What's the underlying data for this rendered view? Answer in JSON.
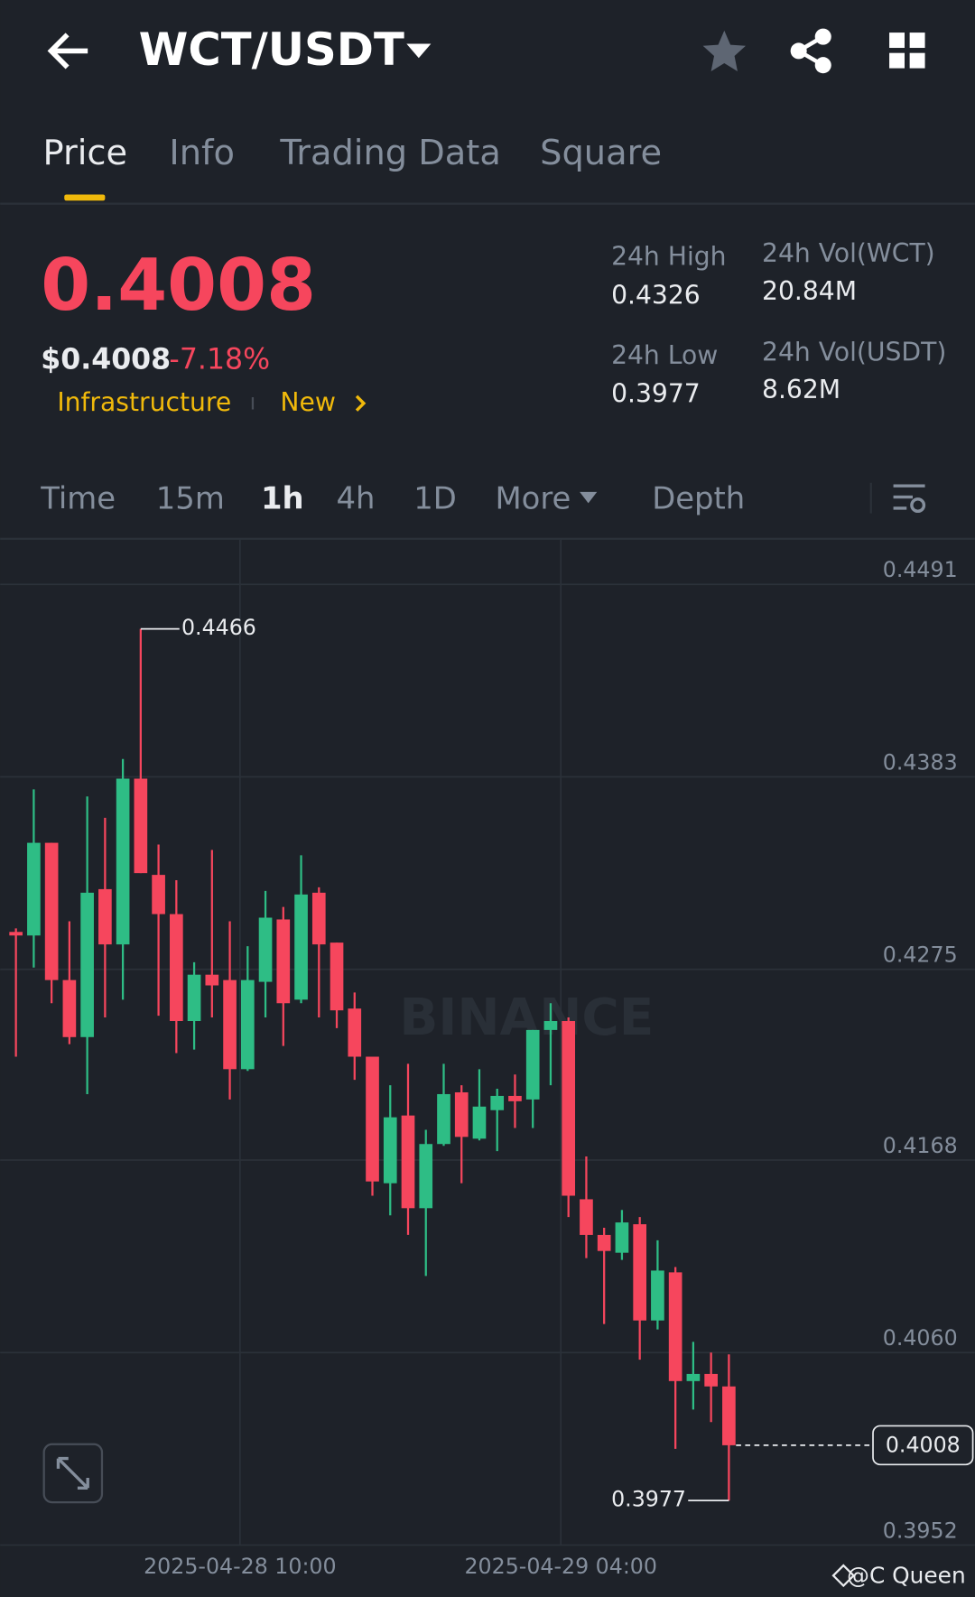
{
  "header": {
    "pair": "WCT/USDT"
  },
  "tabs": [
    "Price",
    "Info",
    "Trading Data",
    "Square"
  ],
  "ticker": {
    "last_price": "0.4008",
    "usd_price": "$0.4008",
    "change": "-7.18%",
    "tags": [
      "Infrastructure",
      "New"
    ],
    "stats": [
      {
        "label": "24h High",
        "value": "0.4326"
      },
      {
        "label": "24h Vol(WCT)",
        "value": "20.84M"
      },
      {
        "label": "24h Low",
        "value": "0.3977"
      },
      {
        "label": "24h Vol(USDT)",
        "value": "8.62M"
      }
    ]
  },
  "intervals": [
    "Time",
    "15m",
    "1h",
    "4h",
    "1D",
    "More",
    "Depth"
  ],
  "chart_data": {
    "type": "candlestick",
    "categories": [
      null,
      null,
      null,
      null,
      null,
      null,
      null,
      null,
      null,
      null,
      null,
      null,
      "2025-04-28 10:00",
      null,
      null,
      null,
      null,
      null,
      null,
      null,
      null,
      null,
      null,
      null,
      null,
      null,
      null,
      null,
      null,
      null,
      "2025-04-29 04:00",
      null,
      null,
      null,
      null,
      null,
      null,
      null,
      null,
      null,
      null
    ],
    "open": [
      0.4296,
      0.4294,
      0.4346,
      0.4269,
      0.4237,
      0.432,
      0.4289,
      0.4382,
      0.4328,
      0.4306,
      0.4246,
      0.4272,
      0.4269,
      0.4219,
      0.4268,
      0.4303,
      0.4258,
      0.4318,
      0.429,
      0.4253,
      0.4226,
      0.4155,
      0.4193,
      0.4141,
      0.4177,
      0.4206,
      0.418,
      0.4196,
      0.4204,
      0.4202,
      0.4241,
      0.4246,
      0.4146,
      0.4126,
      0.4116,
      0.4132,
      0.4078,
      0.4105,
      0.4044,
      0.4048,
      0.4041
    ],
    "high": [
      0.4298,
      0.4376,
      0.4346,
      0.4302,
      0.4372,
      0.436,
      0.4393,
      0.4466,
      0.4345,
      0.4325,
      0.4279,
      0.4342,
      0.4302,
      0.4288,
      0.4319,
      0.431,
      0.4339,
      0.4321,
      0.429,
      0.4262,
      0.4226,
      0.421,
      0.4222,
      0.4185,
      0.4222,
      0.421,
      0.4219,
      0.4208,
      0.4216,
      0.4241,
      0.4256,
      0.4248,
      0.417,
      0.413,
      0.414,
      0.4136,
      0.4123,
      0.4108,
      0.4066,
      0.406,
      0.4059
    ],
    "low": [
      0.4226,
      0.4276,
      0.4256,
      0.4233,
      0.4205,
      0.4248,
      0.4258,
      0.4329,
      0.4249,
      0.4228,
      0.423,
      0.4248,
      0.4202,
      0.4218,
      0.4248,
      0.4232,
      0.4256,
      0.4248,
      0.4242,
      0.4213,
      0.4148,
      0.4137,
      0.4126,
      0.4103,
      0.4176,
      0.4155,
      0.4179,
      0.4173,
      0.4186,
      0.4186,
      0.421,
      0.4136,
      0.4113,
      0.4076,
      0.4112,
      0.4056,
      0.4073,
      0.4006,
      0.4028,
      0.4021,
      0.3977
    ],
    "close": [
      0.4294,
      0.4346,
      0.4269,
      0.4237,
      0.4318,
      0.4289,
      0.4382,
      0.4329,
      0.4306,
      0.4246,
      0.4272,
      0.4266,
      0.4219,
      0.4269,
      0.4304,
      0.4256,
      0.4317,
      0.4289,
      0.4252,
      0.4226,
      0.4156,
      0.4192,
      0.4141,
      0.4177,
      0.4205,
      0.4181,
      0.4198,
      0.4204,
      0.4201,
      0.4241,
      0.4246,
      0.4148,
      0.4126,
      0.4117,
      0.4133,
      0.4078,
      0.4106,
      0.4044,
      0.4048,
      0.4041,
      0.4008
    ],
    "up_color": "#2ebd85",
    "down_color": "#f6465d",
    "ylim": [
      0.3952,
      0.4516
    ],
    "yticks": [
      0.4491,
      0.4383,
      0.4275,
      0.4168,
      {
        "value": 0.406,
        "label": "0.4060"
      },
      0.3952
    ],
    "grid": true,
    "watermark": "BINANCE"
  },
  "credit": "@C Queen"
}
